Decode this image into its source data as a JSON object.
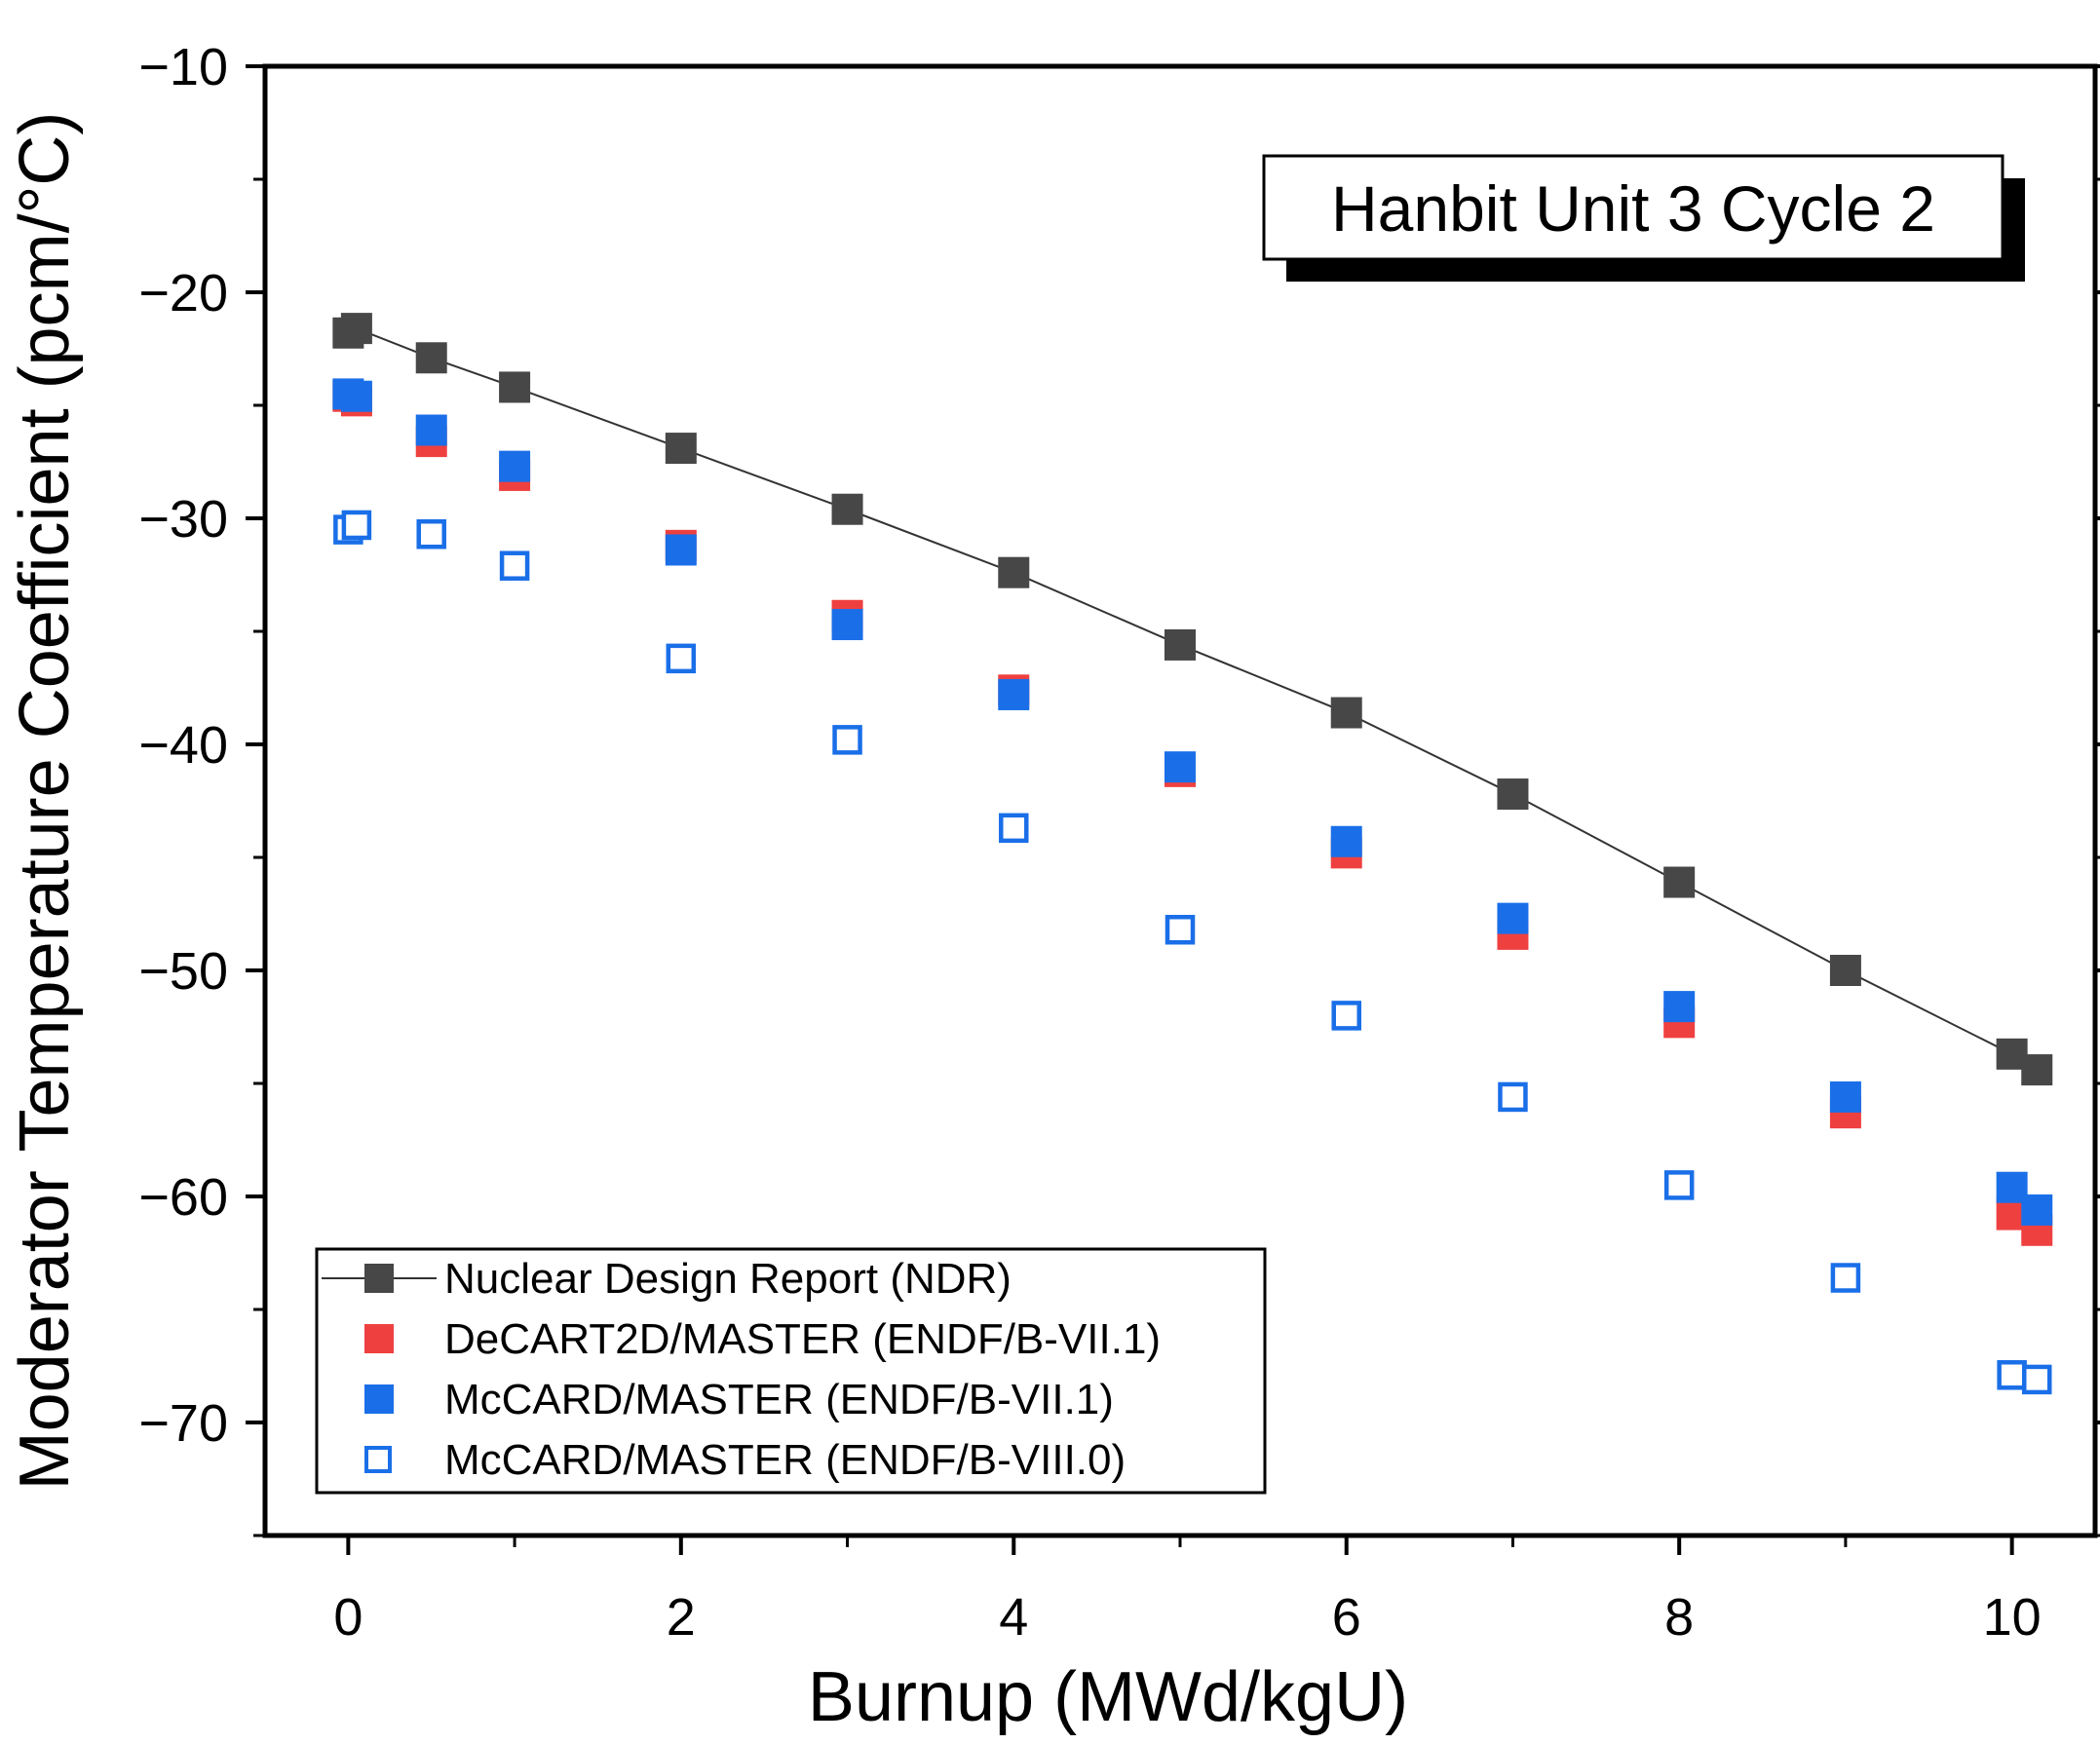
{
  "chart_data": {
    "type": "scatter",
    "title": "",
    "xlabel": "Burnup (MWd/kgU)",
    "ylabel": "Moderator Temperature Coefficient (pcm/°C)",
    "xlim": [
      -0.5,
      10.5
    ],
    "ylim": [
      -75,
      -10
    ],
    "xticks": [
      0,
      2,
      4,
      6,
      8,
      10
    ],
    "xtick_labels": [
      "0",
      "2",
      "4",
      "6",
      "8",
      "10"
    ],
    "yticks": [
      -10,
      -20,
      -30,
      -40,
      -50,
      -60,
      -70
    ],
    "ytick_labels": [
      "−10",
      "−20",
      "−30",
      "−40",
      "−50",
      "−60",
      "−70"
    ],
    "annotation": "Hanbit Unit 3 Cycle 2",
    "legend_position": "bottom-left",
    "series": [
      {
        "name": "Nuclear Design Report (NDR)",
        "marker": "filled-square",
        "line": true,
        "color": "#474747",
        "x": [
          0,
          0.05,
          0.5,
          1,
          2,
          3,
          4,
          5,
          6,
          7,
          8,
          9,
          10,
          10.15
        ],
        "y": [
          -21.8,
          -21.6,
          -22.9,
          -24.2,
          -26.9,
          -29.6,
          -32.4,
          -35.6,
          -38.6,
          -42.2,
          -46.1,
          -50.0,
          -53.7,
          -54.4
        ]
      },
      {
        "name": "DeCART2D/MASTER (ENDF/B-VII.1)",
        "marker": "filled-square",
        "line": false,
        "color": "#ef4040",
        "x": [
          0,
          0.05,
          0.5,
          1,
          2,
          3,
          4,
          5,
          6,
          7,
          8,
          9,
          10,
          10.15
        ],
        "y": [
          -24.6,
          -24.8,
          -26.6,
          -28.1,
          -31.2,
          -34.3,
          -37.6,
          -41.2,
          -44.8,
          -48.4,
          -52.3,
          -56.3,
          -60.8,
          -61.5
        ]
      },
      {
        "name": "McCARD/MASTER (ENDF/B-VII.1)",
        "marker": "filled-square",
        "line": false,
        "color": "#1a6fe8",
        "x": [
          0,
          0.05,
          0.5,
          1,
          2,
          3,
          4,
          5,
          6,
          7,
          8,
          9,
          10,
          10.15
        ],
        "y": [
          -24.5,
          -24.6,
          -26.1,
          -27.7,
          -31.4,
          -34.7,
          -37.8,
          -41.0,
          -44.3,
          -47.7,
          -51.6,
          -55.6,
          -59.6,
          -60.6
        ]
      },
      {
        "name": "McCARD/MASTER (ENDF/B-VIII.0)",
        "marker": "open-square",
        "line": false,
        "color": "#1a6fe8",
        "x": [
          0,
          0.05,
          0.5,
          1,
          2,
          3,
          4,
          5,
          6,
          7,
          8,
          9,
          10,
          10.15
        ],
        "y": [
          -30.5,
          -30.3,
          -30.7,
          -32.1,
          -36.2,
          -39.8,
          -43.7,
          -48.2,
          -52.0,
          -55.6,
          -59.5,
          -63.6,
          -67.9,
          -68.1
        ]
      }
    ]
  }
}
